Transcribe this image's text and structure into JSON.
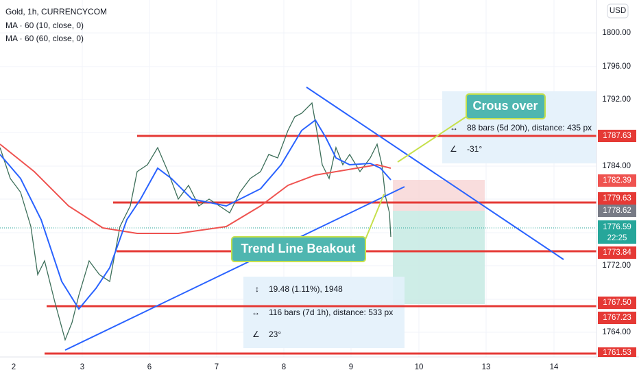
{
  "header": {
    "title": "Gold, 1h, CURRENCYCOM",
    "indicators": [
      "MA · 60 (10, close, 0)",
      "MA · 60 (60, close, 0)"
    ]
  },
  "currency": "USD",
  "price_ticks": [
    "1800.00",
    "1796.00",
    "1792.00",
    "1784.00",
    "1772.00",
    "1764.00"
  ],
  "price_labels": [
    "1787.63",
    "1782.39",
    "1779.63",
    "1778.62",
    "1776.59",
    "22:25",
    "1773.84",
    "1767.50",
    "1767.23",
    "1761.53"
  ],
  "time_ticks": [
    "2",
    "3",
    "6",
    "7",
    "8",
    "9",
    "10",
    "13",
    "14"
  ],
  "annotations": [
    "Crous over",
    "Trend Line Beakout"
  ],
  "measure_boxes": [
    {
      "lines": [
        "19.48 (1.11%), 1948",
        "116 bars (7d 1h), distance: 533 px",
        "23°"
      ]
    },
    {
      "lines": [
        "88 bars (5d 20h), distance: 435 px",
        "-31°"
      ]
    }
  ]
}
